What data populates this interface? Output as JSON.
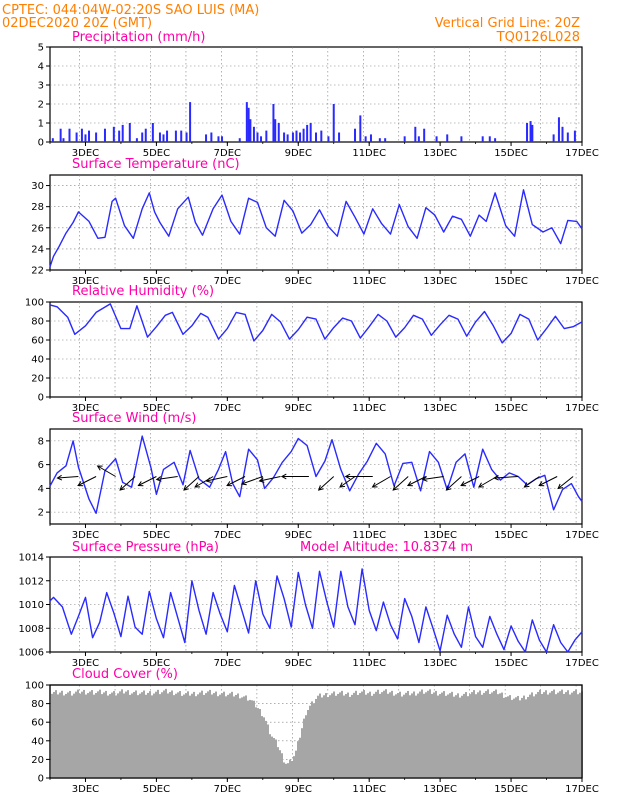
{
  "header": {
    "line1": "CPTEC:   044:04W-02:20S   SAO LUIS (MA)",
    "line2": "02DEC2020 20Z (GMT)",
    "vgrid": "Vertical Grid Line: 20Z",
    "code": "TQ0126L028"
  },
  "colors": {
    "header": "#ff7f00",
    "title": "#ff00aa",
    "line": "#2a2aff",
    "cloud": "#a6a6a6",
    "wind_arrow": "#000000"
  },
  "x_axis": {
    "days": [
      "3DEC",
      "5DEC",
      "7DEC",
      "9DEC",
      "11DEC",
      "13DEC",
      "15DEC",
      "17DEC"
    ],
    "start_day": 2.0,
    "end_day": 17.0
  },
  "chart_data": [
    {
      "id": "precip",
      "type": "bar",
      "title": "Precipitation (mm/h)",
      "ylim": [
        0,
        5
      ],
      "yticks": [
        "0",
        "1",
        "2",
        "3",
        "4",
        "5"
      ],
      "x_days": [
        2.08,
        2.3,
        2.38,
        2.55,
        2.75,
        2.9,
        3.0,
        3.1,
        3.3,
        3.55,
        3.8,
        3.95,
        4.05,
        4.25,
        4.45,
        4.6,
        4.7,
        4.9,
        5.1,
        5.2,
        5.3,
        5.55,
        5.7,
        5.85,
        5.95,
        6.4,
        6.55,
        6.75,
        6.85,
        7.35,
        7.55,
        7.6,
        7.65,
        7.75,
        7.85,
        7.95,
        8.1,
        8.3,
        8.35,
        8.45,
        8.6,
        8.7,
        8.85,
        8.95,
        9.05,
        9.15,
        9.25,
        9.35,
        9.5,
        9.65,
        9.85,
        10.0,
        10.15,
        10.6,
        10.75,
        10.9,
        11.05,
        11.3,
        11.45,
        12.0,
        12.3,
        12.4,
        12.55,
        12.9,
        13.2,
        13.6,
        14.2,
        14.4,
        14.55,
        15.45,
        15.55,
        15.6,
        16.2,
        16.35,
        16.45,
        16.6,
        16.8
      ],
      "values": [
        0.2,
        0.7,
        0.2,
        0.7,
        0.5,
        0.7,
        0.4,
        0.6,
        0.5,
        0.7,
        0.8,
        0.6,
        0.9,
        1.0,
        0.2,
        0.5,
        0.7,
        1.0,
        0.5,
        0.4,
        0.6,
        0.6,
        0.6,
        0.5,
        2.1,
        0.4,
        0.5,
        0.3,
        0.3,
        0.2,
        2.1,
        1.8,
        1.2,
        0.8,
        0.5,
        0.3,
        0.6,
        2.0,
        1.2,
        1.0,
        0.5,
        0.4,
        0.5,
        0.6,
        0.5,
        0.7,
        0.9,
        1.0,
        0.5,
        0.6,
        0.3,
        2.0,
        0.5,
        0.7,
        1.4,
        0.3,
        0.4,
        0.2,
        0.2,
        0.3,
        0.8,
        0.3,
        0.7,
        0.3,
        0.4,
        0.3,
        0.3,
        0.3,
        0.2,
        1.0,
        1.1,
        0.9,
        0.4,
        1.3,
        0.8,
        0.5,
        0.6
      ]
    },
    {
      "id": "temp",
      "type": "line",
      "title": "Surface Temperature (nC)",
      "ylim": [
        22,
        31
      ],
      "yticks": [
        "22",
        "24",
        "26",
        "28",
        "30"
      ],
      "x_days": [
        2.0,
        2.1,
        2.25,
        2.45,
        2.65,
        2.8,
        3.1,
        3.35,
        3.55,
        3.75,
        3.85,
        4.1,
        4.35,
        4.6,
        4.8,
        4.95,
        5.1,
        5.35,
        5.6,
        5.9,
        6.1,
        6.3,
        6.6,
        6.85,
        7.1,
        7.35,
        7.6,
        7.85,
        8.1,
        8.35,
        8.6,
        8.85,
        9.1,
        9.35,
        9.6,
        9.85,
        10.1,
        10.35,
        10.6,
        10.85,
        11.1,
        11.35,
        11.6,
        11.85,
        12.1,
        12.35,
        12.6,
        12.85,
        13.1,
        13.35,
        13.6,
        13.85,
        14.1,
        14.3,
        14.55,
        14.85,
        15.1,
        15.35,
        15.6,
        15.9,
        16.15,
        16.4,
        16.6,
        16.85,
        17.0
      ],
      "values": [
        22.3,
        23.3,
        24.2,
        25.5,
        26.5,
        27.5,
        26.6,
        25.0,
        25.1,
        28.5,
        28.8,
        26.2,
        25.0,
        27.8,
        29.3,
        27.5,
        26.5,
        25.2,
        27.8,
        28.9,
        26.5,
        25.3,
        27.8,
        29.1,
        26.6,
        25.4,
        28.8,
        28.4,
        26.0,
        25.2,
        28.6,
        27.6,
        25.5,
        26.3,
        27.7,
        26.1,
        25.2,
        28.5,
        27.0,
        25.4,
        27.8,
        26.4,
        25.4,
        28.2,
        26.1,
        25.0,
        27.9,
        27.2,
        25.6,
        27.1,
        26.8,
        25.2,
        27.2,
        26.6,
        29.3,
        26.2,
        25.2,
        29.6,
        26.3,
        25.6,
        26.0,
        24.5,
        26.7,
        26.6,
        25.9
      ]
    },
    {
      "id": "rh",
      "type": "line",
      "title": "Relative Humidity (%)",
      "ylim": [
        0,
        100
      ],
      "yticks": [
        "0",
        "20",
        "40",
        "60",
        "80",
        "100"
      ],
      "x_days": [
        2.0,
        2.2,
        2.5,
        2.7,
        3.0,
        3.3,
        3.7,
        4.0,
        4.25,
        4.45,
        4.75,
        5.0,
        5.25,
        5.45,
        5.75,
        6.0,
        6.25,
        6.45,
        6.75,
        7.0,
        7.25,
        7.5,
        7.75,
        8.0,
        8.25,
        8.5,
        8.75,
        9.0,
        9.25,
        9.5,
        9.75,
        10.0,
        10.25,
        10.5,
        10.75,
        11.0,
        11.25,
        11.5,
        11.75,
        12.0,
        12.25,
        12.5,
        12.75,
        13.0,
        13.25,
        13.5,
        13.75,
        14.0,
        14.25,
        14.5,
        14.75,
        15.0,
        15.25,
        15.5,
        15.75,
        16.0,
        16.25,
        16.5,
        16.75,
        17.0
      ],
      "values": [
        97,
        95,
        84,
        66,
        75,
        89,
        98,
        72,
        72,
        96,
        63,
        74,
        86,
        89,
        66,
        75,
        88,
        84,
        61,
        72,
        89,
        87,
        59,
        70,
        87,
        79,
        61,
        71,
        84,
        82,
        61,
        73,
        83,
        80,
        62,
        74,
        87,
        80,
        63,
        73,
        86,
        82,
        65,
        76,
        86,
        82,
        64,
        79,
        90,
        75,
        57,
        67,
        87,
        82,
        60,
        72,
        85,
        72,
        74,
        79
      ]
    },
    {
      "id": "wind",
      "type": "line",
      "title": "Surface Wind (m/s)",
      "ylim": [
        1,
        9
      ],
      "yticks": [
        "2",
        "4",
        "6",
        "8"
      ],
      "x_days": [
        2.0,
        2.2,
        2.45,
        2.65,
        2.8,
        3.1,
        3.3,
        3.55,
        3.85,
        4.05,
        4.3,
        4.6,
        4.85,
        5.0,
        5.2,
        5.5,
        5.75,
        5.95,
        6.2,
        6.5,
        6.75,
        6.95,
        7.15,
        7.35,
        7.6,
        7.85,
        8.05,
        8.3,
        8.55,
        8.8,
        9.0,
        9.25,
        9.5,
        9.75,
        9.95,
        10.2,
        10.45,
        10.7,
        10.95,
        11.2,
        11.45,
        11.7,
        11.95,
        12.2,
        12.45,
        12.7,
        12.95,
        13.2,
        13.45,
        13.7,
        13.95,
        14.2,
        14.45,
        14.7,
        14.95,
        15.2,
        15.45,
        15.7,
        15.95,
        16.2,
        16.45,
        16.7,
        16.9,
        17.0
      ],
      "values": [
        4.2,
        5.3,
        5.9,
        8.0,
        5.8,
        3.1,
        1.9,
        5.5,
        6.5,
        4.5,
        4.1,
        8.4,
        5.7,
        3.5,
        5.6,
        6.2,
        4.3,
        7.2,
        4.8,
        4.1,
        5.6,
        7.1,
        4.4,
        3.3,
        7.3,
        6.4,
        4.0,
        4.9,
        6.2,
        7.1,
        8.2,
        7.6,
        5.0,
        6.3,
        8.1,
        5.6,
        3.8,
        5.2,
        6.3,
        7.8,
        6.9,
        4.2,
        6.1,
        6.2,
        3.8,
        7.1,
        6.2,
        3.9,
        6.2,
        6.9,
        4.1,
        7.3,
        5.6,
        4.7,
        5.3,
        5.0,
        4.3,
        4.8,
        5.1,
        2.2,
        3.9,
        4.4,
        3.3,
        2.9
      ],
      "arrows": [
        {
          "day": 2.8,
          "dx": -0.35,
          "dy": -0.05
        },
        {
          "day": 3.3,
          "dx": -0.3,
          "dy": -0.3
        },
        {
          "day": 3.85,
          "dx": -0.3,
          "dy": 0.35
        },
        {
          "day": 4.4,
          "dx": -0.25,
          "dy": -0.45
        },
        {
          "day": 5.0,
          "dx": -0.3,
          "dy": -0.3
        },
        {
          "day": 5.6,
          "dx": -0.35,
          "dy": -0.1
        },
        {
          "day": 6.2,
          "dx": -0.25,
          "dy": -0.45
        },
        {
          "day": 6.6,
          "dx": -0.3,
          "dy": -0.35
        },
        {
          "day": 7.0,
          "dx": -0.35,
          "dy": -0.15
        },
        {
          "day": 7.5,
          "dx": -0.3,
          "dy": -0.3
        },
        {
          "day": 8.0,
          "dx": -0.35,
          "dy": -0.25
        },
        {
          "day": 8.5,
          "dx": -0.35,
          "dy": -0.15
        },
        {
          "day": 9.3,
          "dx": -0.45,
          "dy": 0.0
        },
        {
          "day": 10.0,
          "dx": -0.25,
          "dy": -0.45
        },
        {
          "day": 10.6,
          "dx": -0.25,
          "dy": -0.35
        },
        {
          "day": 11.1,
          "dx": -0.45,
          "dy": 0.0
        },
        {
          "day": 11.6,
          "dx": -0.3,
          "dy": -0.35
        },
        {
          "day": 12.1,
          "dx": -0.25,
          "dy": -0.45
        },
        {
          "day": 12.6,
          "dx": -0.3,
          "dy": -0.3
        },
        {
          "day": 13.1,
          "dx": -0.35,
          "dy": -0.1
        },
        {
          "day": 13.6,
          "dx": -0.25,
          "dy": -0.45
        },
        {
          "day": 14.1,
          "dx": -0.3,
          "dy": -0.3
        },
        {
          "day": 14.6,
          "dx": -0.3,
          "dy": -0.35
        },
        {
          "day": 15.2,
          "dx": -0.4,
          "dy": -0.05
        },
        {
          "day": 15.8,
          "dx": -0.25,
          "dy": -0.35
        },
        {
          "day": 16.3,
          "dx": -0.3,
          "dy": -0.3
        },
        {
          "day": 16.75,
          "dx": -0.25,
          "dy": -0.4
        }
      ]
    },
    {
      "id": "pres",
      "type": "line",
      "title": "Surface Pressure (hPa)",
      "subtitle": "Model Altitude: 10.8374 m",
      "ylim": [
        1006,
        1014
      ],
      "yticks": [
        "1006",
        "1008",
        "1010",
        "1012",
        "1014"
      ],
      "x_days": [
        2.0,
        2.1,
        2.35,
        2.6,
        2.8,
        3.0,
        3.2,
        3.4,
        3.6,
        3.8,
        4.0,
        4.2,
        4.4,
        4.6,
        4.8,
        5.0,
        5.2,
        5.4,
        5.6,
        5.8,
        6.0,
        6.2,
        6.4,
        6.6,
        6.8,
        7.0,
        7.2,
        7.4,
        7.6,
        7.8,
        8.0,
        8.2,
        8.4,
        8.6,
        8.8,
        9.0,
        9.2,
        9.4,
        9.6,
        9.8,
        10.0,
        10.2,
        10.4,
        10.6,
        10.8,
        11.0,
        11.2,
        11.4,
        11.6,
        11.8,
        12.0,
        12.2,
        12.4,
        12.6,
        12.8,
        13.0,
        13.2,
        13.4,
        13.6,
        13.8,
        14.0,
        14.2,
        14.4,
        14.6,
        14.8,
        15.0,
        15.2,
        15.4,
        15.6,
        15.8,
        16.0,
        16.2,
        16.4,
        16.6,
        16.8,
        17.0
      ],
      "values": [
        1010.3,
        1010.6,
        1009.8,
        1007.5,
        1009.0,
        1010.6,
        1007.2,
        1008.5,
        1011.0,
        1009.3,
        1007.3,
        1010.7,
        1008.1,
        1007.5,
        1011.1,
        1008.8,
        1007.2,
        1011.0,
        1008.9,
        1006.8,
        1012.0,
        1009.5,
        1007.5,
        1011.0,
        1009.2,
        1007.7,
        1011.6,
        1009.6,
        1007.6,
        1012.0,
        1009.2,
        1008.0,
        1012.4,
        1010.5,
        1008.1,
        1012.7,
        1010.0,
        1008.0,
        1012.8,
        1010.3,
        1008.1,
        1012.8,
        1009.8,
        1008.3,
        1013.0,
        1009.5,
        1007.8,
        1010.2,
        1008.3,
        1007.1,
        1010.5,
        1009.0,
        1006.8,
        1009.8,
        1008.0,
        1006.1,
        1009.1,
        1007.5,
        1006.4,
        1009.8,
        1007.3,
        1006.4,
        1009.0,
        1007.5,
        1006.2,
        1008.2,
        1006.9,
        1006.0,
        1008.7,
        1007.0,
        1006.0,
        1008.3,
        1006.8,
        1006.0,
        1007.0,
        1007.7
      ]
    },
    {
      "id": "cloud",
      "type": "area",
      "title": "Cloud Cover (%)",
      "ylim": [
        0,
        100
      ],
      "yticks": [
        "0",
        "20",
        "40",
        "60",
        "80",
        "100"
      ],
      "x_days": [
        2.0,
        2.3,
        2.6,
        2.9,
        3.2,
        3.5,
        3.8,
        4.1,
        4.3,
        4.6,
        4.9,
        5.2,
        5.5,
        5.8,
        6.1,
        6.4,
        6.7,
        7.0,
        7.3,
        7.6,
        7.8,
        8.0,
        8.2,
        8.4,
        8.6,
        8.7,
        8.9,
        9.2,
        9.5,
        9.8,
        10.1,
        10.4,
        10.7,
        11.0,
        11.3,
        11.6,
        11.9,
        12.2,
        12.5,
        12.8,
        13.1,
        13.4,
        13.7,
        14.0,
        14.3,
        14.6,
        14.9,
        15.2,
        15.5,
        15.8,
        16.1,
        16.4,
        16.7,
        17.0
      ],
      "values": [
        94,
        95,
        94,
        96,
        95,
        95,
        94,
        96,
        95,
        94,
        95,
        96,
        95,
        93,
        94,
        95,
        94,
        93,
        92,
        88,
        80,
        70,
        50,
        38,
        20,
        18,
        30,
        75,
        90,
        93,
        94,
        93,
        95,
        94,
        96,
        95,
        93,
        94,
        96,
        95,
        94,
        92,
        93,
        95,
        96,
        95,
        90,
        88,
        92,
        95,
        96,
        95,
        96,
        95
      ]
    }
  ]
}
